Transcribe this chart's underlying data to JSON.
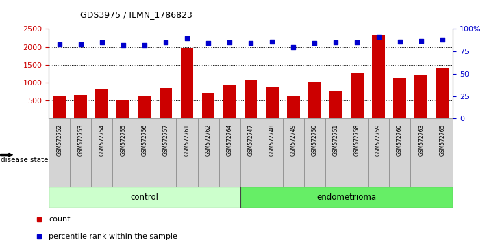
{
  "title": "GDS3975 / ILMN_1786823",
  "samples": [
    "GSM572752",
    "GSM572753",
    "GSM572754",
    "GSM572755",
    "GSM572756",
    "GSM572757",
    "GSM572761",
    "GSM572762",
    "GSM572764",
    "GSM572747",
    "GSM572748",
    "GSM572749",
    "GSM572750",
    "GSM572751",
    "GSM572758",
    "GSM572759",
    "GSM572760",
    "GSM572763",
    "GSM572765"
  ],
  "counts": [
    620,
    655,
    830,
    510,
    640,
    860,
    1980,
    710,
    940,
    1075,
    890,
    615,
    1020,
    780,
    1265,
    2330,
    1140,
    1210,
    1410
  ],
  "percentiles": [
    83,
    83,
    85,
    82,
    82,
    85,
    90,
    84,
    85,
    84,
    86,
    80,
    84,
    85,
    85,
    91,
    86,
    87,
    88
  ],
  "n_control": 9,
  "n_endometrioma": 10,
  "bar_color": "#cc0000",
  "dot_color": "#0000cc",
  "control_color": "#ccffcc",
  "endometrioma_color": "#66ee66",
  "sample_box_color": "#d4d4d4",
  "ylim_left": [
    0,
    2500
  ],
  "ylim_right": [
    0,
    100
  ],
  "yticks_left": [
    500,
    1000,
    1500,
    2000,
    2500
  ],
  "yticks_right": [
    0,
    25,
    50,
    75,
    100
  ],
  "ytick_labels_right": [
    "0",
    "25",
    "50",
    "75",
    "100%"
  ]
}
